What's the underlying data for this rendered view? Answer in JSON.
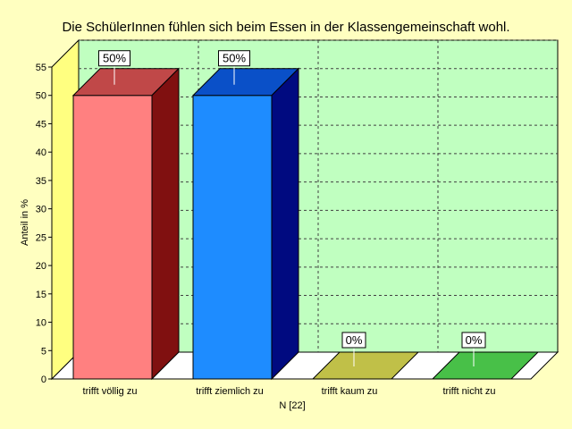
{
  "chart_data": {
    "type": "bar",
    "title": "Die SchülerInnen fühlen sich beim Essen in der Klassengemeinschaft wohl.",
    "ylabel": "Anteil in %",
    "xlabel": "N [22]",
    "categories": [
      "trifft völlig zu",
      "trifft ziemlich zu",
      "trifft kaum zu",
      "trifft nicht zu"
    ],
    "values": [
      50,
      50,
      0,
      0
    ],
    "data_labels": [
      "50%",
      "50%",
      "0%",
      "0%"
    ],
    "ylim": [
      0,
      55
    ],
    "yticks": [
      0,
      5,
      10,
      15,
      20,
      25,
      30,
      35,
      40,
      45,
      50,
      55
    ],
    "grid": true,
    "colors": {
      "background": "#ffffc0",
      "plot_back": "#c0ffc0",
      "left_wall": "#ffff80",
      "floor": "#ffffff",
      "bars": [
        {
          "front": "#ff8080",
          "top": "#c04848",
          "side": "#801010"
        },
        {
          "front": "#1e8cff",
          "top": "#0a50c8",
          "side": "#000a80"
        },
        {
          "front": "#c0c048",
          "top": "#c0c048",
          "side": "#a0a030"
        },
        {
          "front": "#48c048",
          "top": "#48c048",
          "side": "#30a030"
        }
      ]
    }
  }
}
